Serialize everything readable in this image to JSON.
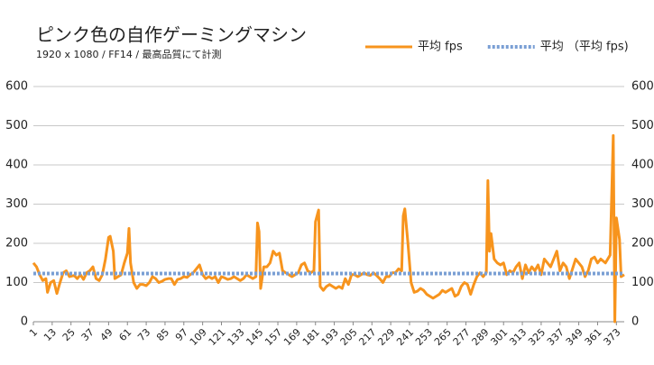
{
  "chart_data": {
    "type": "line",
    "title": "ピンク色の自作ゲーミングマシン",
    "subtitle": "1920 x 1080 / FF14 / 最高品質にて計測",
    "xlim": [
      1,
      378
    ],
    "xticks": [
      1,
      13,
      25,
      37,
      49,
      61,
      73,
      85,
      97,
      109,
      121,
      133,
      145,
      157,
      169,
      181,
      193,
      205,
      217,
      229,
      241,
      253,
      265,
      277,
      289,
      301,
      313,
      325,
      337,
      349,
      361,
      373
    ],
    "ylim": [
      0,
      600
    ],
    "yticks": [
      0,
      100,
      200,
      300,
      400,
      500,
      600
    ],
    "y2lim": [
      0,
      600
    ],
    "y2ticks": [
      0,
      100,
      200,
      300,
      400,
      500,
      600
    ],
    "grid": true,
    "legend": "top-right",
    "series": [
      {
        "name": "平均 fps",
        "color": "#f7941d",
        "x": [
          1,
          3,
          5,
          7,
          9,
          10,
          12,
          14,
          16,
          18,
          20,
          22,
          24,
          27,
          29,
          31,
          33,
          35,
          37,
          39,
          41,
          43,
          45,
          47,
          49,
          50,
          52,
          53,
          55,
          57,
          59,
          61,
          62,
          63,
          65,
          67,
          69,
          71,
          73,
          75,
          77,
          79,
          81,
          83,
          85,
          87,
          89,
          91,
          93,
          95,
          97,
          99,
          101,
          103,
          105,
          107,
          109,
          111,
          113,
          115,
          117,
          119,
          121,
          123,
          125,
          127,
          129,
          131,
          133,
          135,
          137,
          139,
          141,
          143,
          144,
          145,
          146,
          148,
          150,
          152,
          154,
          156,
          158,
          160,
          162,
          164,
          166,
          168,
          170,
          172,
          174,
          176,
          178,
          180,
          181,
          183,
          184,
          186,
          188,
          190,
          192,
          194,
          196,
          198,
          200,
          202,
          204,
          206,
          208,
          210,
          212,
          214,
          216,
          218,
          220,
          222,
          224,
          226,
          228,
          230,
          232,
          234,
          236,
          237,
          238,
          240,
          242,
          244,
          246,
          248,
          250,
          252,
          254,
          256,
          258,
          260,
          262,
          264,
          266,
          268,
          270,
          272,
          274,
          276,
          278,
          280,
          282,
          284,
          286,
          288,
          290,
          291,
          292,
          293,
          295,
          297,
          299,
          301,
          303,
          305,
          307,
          309,
          311,
          313,
          315,
          317,
          319,
          321,
          323,
          325,
          327,
          329,
          331,
          333,
          335,
          337,
          339,
          341,
          343,
          345,
          347,
          349,
          351,
          353,
          355,
          357,
          359,
          361,
          363,
          366,
          369,
          371,
          372,
          373,
          375,
          376,
          378
        ],
        "values": [
          150,
          140,
          120,
          105,
          110,
          75,
          100,
          105,
          72,
          100,
          125,
          130,
          115,
          118,
          110,
          120,
          108,
          125,
          130,
          140,
          110,
          105,
          120,
          160,
          215,
          218,
          180,
          110,
          115,
          120,
          150,
          175,
          238,
          150,
          100,
          85,
          95,
          95,
          92,
          100,
          115,
          110,
          100,
          103,
          108,
          110,
          110,
          95,
          108,
          110,
          115,
          113,
          120,
          125,
          135,
          145,
          120,
          110,
          115,
          110,
          115,
          100,
          115,
          112,
          108,
          110,
          115,
          110,
          105,
          110,
          120,
          115,
          110,
          115,
          252,
          230,
          85,
          140,
          140,
          150,
          180,
          170,
          175,
          130,
          125,
          120,
          115,
          120,
          125,
          145,
          150,
          130,
          125,
          130,
          255,
          285,
          90,
          80,
          90,
          95,
          90,
          85,
          90,
          85,
          110,
          95,
          120,
          120,
          115,
          120,
          125,
          120,
          118,
          125,
          118,
          110,
          100,
          115,
          115,
          125,
          125,
          135,
          130,
          270,
          288,
          200,
          100,
          75,
          78,
          85,
          80,
          70,
          65,
          60,
          65,
          70,
          80,
          75,
          80,
          85,
          65,
          70,
          90,
          100,
          95,
          70,
          95,
          115,
          125,
          115,
          125,
          360,
          180,
          225,
          160,
          150,
          145,
          150,
          120,
          130,
          125,
          140,
          150,
          110,
          145,
          125,
          140,
          130,
          145,
          120,
          160,
          150,
          140,
          160,
          180,
          130,
          150,
          140,
          110,
          135,
          160,
          150,
          140,
          115,
          130,
          160,
          165,
          150,
          160,
          150,
          170,
          475,
          0,
          265,
          210,
          115,
          120
        ]
      },
      {
        "name": "平均 （平均 fps)",
        "color": "#7a9fd4",
        "style": "dotted",
        "x": [
          1,
          378
        ],
        "values": [
          123,
          123
        ]
      }
    ]
  }
}
